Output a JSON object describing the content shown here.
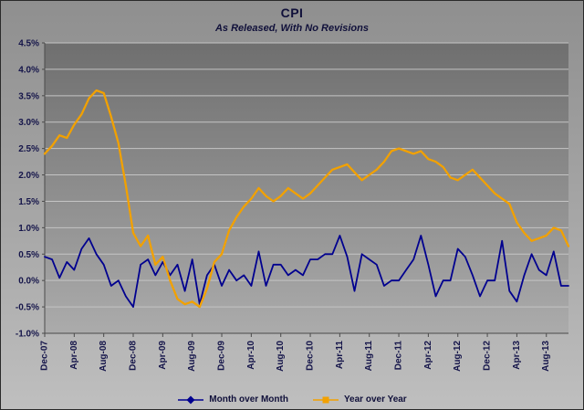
{
  "header": {
    "title": "CPI",
    "subtitle": "As Released, With No Revisions"
  },
  "chart_data": {
    "type": "line",
    "title": "CPI",
    "subtitle": "As Released, With No Revisions",
    "xlabel": "",
    "ylabel": "",
    "ylim": [
      -1.0,
      4.5
    ],
    "grid": true,
    "legend_position": "bottom",
    "frequency": "monthly",
    "x_start": "Dec-07",
    "x_tick_interval": 4,
    "x_tick_labels": [
      "Dec-07",
      "Apr-08",
      "Aug-08",
      "Dec-08",
      "Apr-09",
      "Aug-09",
      "Dec-09",
      "Apr-10",
      "Aug-10",
      "Dec-10",
      "Apr-11",
      "Aug-11",
      "Dec-11",
      "Apr-12",
      "Aug-12",
      "Dec-12",
      "Apr-13",
      "Aug-13"
    ],
    "y_ticks": [
      "4.5%",
      "4.0%",
      "3.5%",
      "3.0%",
      "2.5%",
      "2.0%",
      "1.5%",
      "1.0%",
      "0.5%",
      "0.0%",
      "-0.5%",
      "-1.0%"
    ],
    "colors": {
      "text": "#15154a",
      "axis": "#4a4a4a",
      "gridline": "#c4c4c4",
      "plot_top": "#6f6f6f",
      "plot_bottom": "#ababab"
    },
    "series": [
      {
        "name": "Month over Month",
        "color": "#00008f",
        "marker": "diamond",
        "values": [
          0.45,
          0.4,
          0.05,
          0.35,
          0.2,
          0.6,
          0.8,
          0.5,
          0.3,
          -0.1,
          0.0,
          -0.3,
          -0.5,
          0.3,
          0.4,
          0.1,
          0.35,
          0.1,
          0.3,
          -0.2,
          0.4,
          -0.45,
          0.1,
          0.3,
          -0.1,
          0.2,
          0.0,
          0.1,
          -0.1,
          0.55,
          -0.1,
          0.3,
          0.3,
          0.1,
          0.2,
          0.1,
          0.4,
          0.4,
          0.5,
          0.5,
          0.85,
          0.45,
          -0.2,
          0.5,
          0.4,
          0.3,
          -0.1,
          0.0,
          0.0,
          0.2,
          0.4,
          0.85,
          0.3,
          -0.3,
          0.0,
          0.0,
          0.6,
          0.45,
          0.1,
          -0.3,
          0.0,
          0.0,
          0.75,
          -0.2,
          -0.4,
          0.1,
          0.5,
          0.2,
          0.1,
          0.55,
          -0.1,
          -0.1
        ]
      },
      {
        "name": "Year over Year",
        "color": "#f2a100",
        "marker": "square",
        "values": [
          2.4,
          2.55,
          2.75,
          2.7,
          2.95,
          3.15,
          3.45,
          3.6,
          3.55,
          3.1,
          2.6,
          1.8,
          0.9,
          0.65,
          0.85,
          0.3,
          0.45,
          0.0,
          -0.35,
          -0.45,
          -0.4,
          -0.5,
          -0.15,
          0.35,
          0.5,
          0.95,
          1.2,
          1.4,
          1.55,
          1.75,
          1.6,
          1.5,
          1.6,
          1.75,
          1.65,
          1.55,
          1.65,
          1.8,
          1.95,
          2.1,
          2.15,
          2.2,
          2.05,
          1.9,
          2.0,
          2.1,
          2.25,
          2.45,
          2.5,
          2.45,
          2.4,
          2.45,
          2.3,
          2.25,
          2.15,
          1.95,
          1.9,
          2.0,
          2.1,
          1.95,
          1.8,
          1.65,
          1.55,
          1.45,
          1.1,
          0.9,
          0.75,
          0.8,
          0.85,
          1.0,
          0.95,
          0.65
        ]
      }
    ]
  }
}
